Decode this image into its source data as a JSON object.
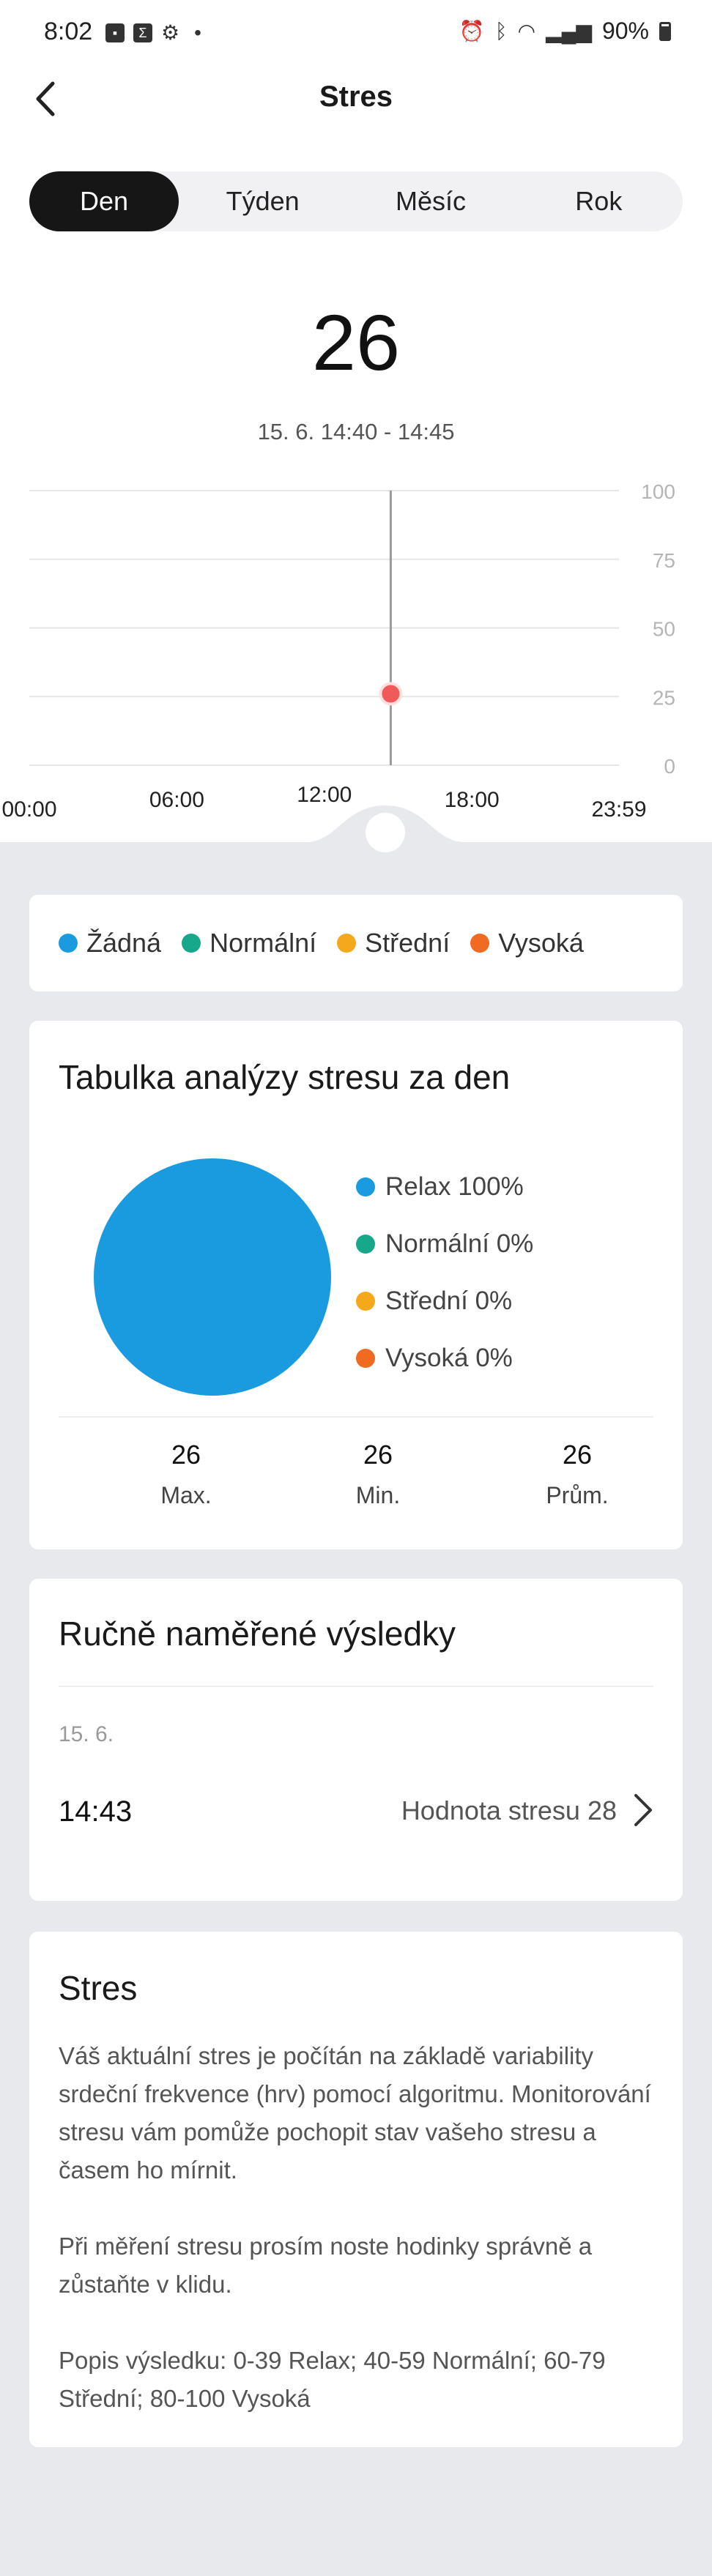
{
  "status_bar": {
    "time": "8:02",
    "dot": "•",
    "battery": "90%",
    "left_icons": [
      "image-icon",
      "sigma-icon",
      "gear-icon"
    ],
    "right_icons": [
      "alarm-icon",
      "bluetooth-icon",
      "wifi-icon",
      "signal-icon",
      "battery-icon"
    ]
  },
  "header": {
    "title": "Stres"
  },
  "tabs": [
    {
      "label": "Den",
      "active": true
    },
    {
      "label": "Týden",
      "active": false
    },
    {
      "label": "Měsíc",
      "active": false
    },
    {
      "label": "Rok",
      "active": false
    }
  ],
  "reading": {
    "value": "26",
    "range": "15. 6. 14:40 - 14:45"
  },
  "chart_data": {
    "type": "scatter",
    "y_ticks": [
      "100",
      "75",
      "50",
      "25",
      "0"
    ],
    "ylim": [
      0,
      100
    ],
    "x_ticks": [
      "00:00",
      "06:00",
      "12:00",
      "18:00",
      "23:59"
    ],
    "points": [
      {
        "x": "14:42",
        "y": 26
      }
    ],
    "marker_color": "#f05a5a",
    "grid": true
  },
  "legend": [
    {
      "label": "Žádná",
      "color": "#1a9be0"
    },
    {
      "label": "Normální",
      "color": "#17a88c"
    },
    {
      "label": "Střední",
      "color": "#f5a81c"
    },
    {
      "label": "Vysoká",
      "color": "#f06a22"
    }
  ],
  "analysis": {
    "title": "Tabulka analýzy stresu za den",
    "pie": [
      {
        "label": "Relax 100%",
        "value": 100,
        "color": "#1a9be0"
      },
      {
        "label": "Normální 0%",
        "value": 0,
        "color": "#17a88c"
      },
      {
        "label": "Střední 0%",
        "value": 0,
        "color": "#f5a81c"
      },
      {
        "label": "Vysoká 0%",
        "value": 0,
        "color": "#f06a22"
      }
    ],
    "stats": [
      {
        "value": "26",
        "label": "Max."
      },
      {
        "value": "26",
        "label": "Min."
      },
      {
        "value": "26",
        "label": "Prům."
      }
    ]
  },
  "manual": {
    "title": "Ručně naměřené výsledky",
    "date": "15. 6.",
    "time": "14:43",
    "value_text": "Hodnota stresu 28"
  },
  "info": {
    "title": "Stres",
    "text": "Váš aktuální stres je počítán na základě variability srdeční frekvence (hrv) pomocí algoritmu. Monitorování stresu vám pomůže pochopit stav vašeho stresu a časem ho mírnit.\n\n Při měření stresu prosím noste hodinky správně a zůstaňte v klidu.\n\n Popis výsledku: 0-39 Relax; 40-59 Normální; 60-79 Střední; 80-100 Vysoká"
  }
}
